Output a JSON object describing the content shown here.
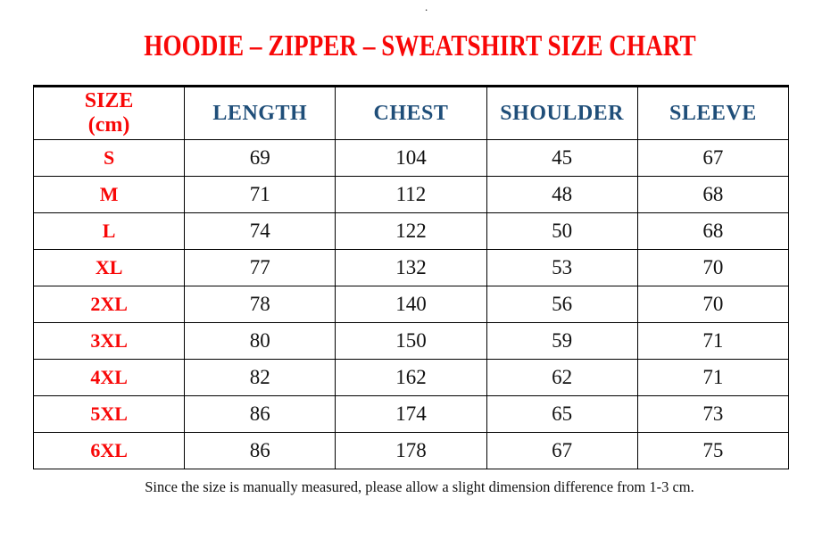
{
  "page": {
    "stray_dot": ".",
    "title": "HOODIE – ZIPPER – SWEATSHIRT SIZE CHART",
    "footer_note": "Since the size is manually measured, please allow a slight dimension difference from 1-3 cm."
  },
  "colors": {
    "title_red": "#f80707",
    "header_blue": "#1f4e79",
    "value_black": "#111111",
    "border_black": "#000000",
    "background": "#ffffff"
  },
  "table": {
    "header": {
      "size_line1": "SIZE",
      "size_line2": "(cm)",
      "columns": [
        "LENGTH",
        "CHEST",
        "SHOULDER",
        "SLEEVE"
      ]
    },
    "rows": [
      {
        "size": "S",
        "length": "69",
        "chest": "104",
        "shoulder": "45",
        "sleeve": "67"
      },
      {
        "size": "M",
        "length": "71",
        "chest": "112",
        "shoulder": "48",
        "sleeve": "68"
      },
      {
        "size": "L",
        "length": "74",
        "chest": "122",
        "shoulder": "50",
        "sleeve": "68"
      },
      {
        "size": "XL",
        "length": "77",
        "chest": "132",
        "shoulder": "53",
        "sleeve": "70"
      },
      {
        "size": "2XL",
        "length": "78",
        "chest": "140",
        "shoulder": "56",
        "sleeve": "70"
      },
      {
        "size": "3XL",
        "length": "80",
        "chest": "150",
        "shoulder": "59",
        "sleeve": "71"
      },
      {
        "size": "4XL",
        "length": "82",
        "chest": "162",
        "shoulder": "62",
        "sleeve": "71"
      },
      {
        "size": "5XL",
        "length": "86",
        "chest": "174",
        "shoulder": "65",
        "sleeve": "73"
      },
      {
        "size": "6XL",
        "length": "86",
        "chest": "178",
        "shoulder": "67",
        "sleeve": "75"
      }
    ]
  }
}
